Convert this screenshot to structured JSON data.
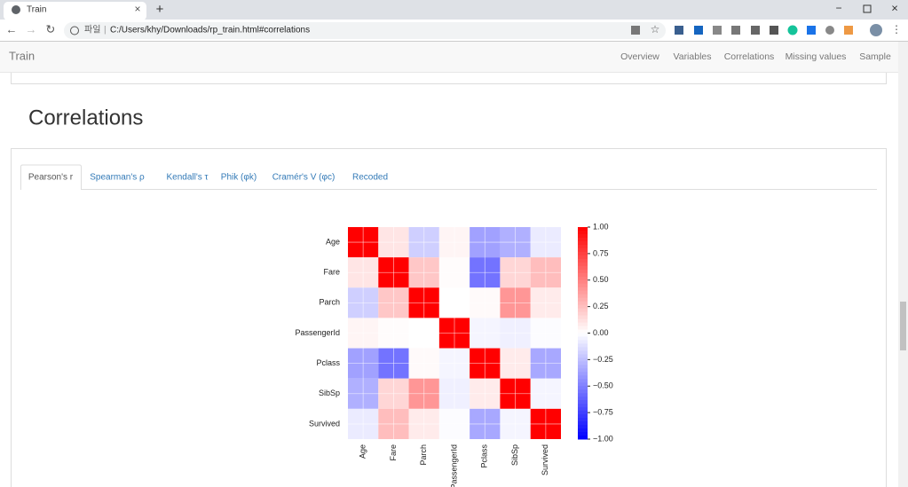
{
  "browser": {
    "tab_title": "Train",
    "url_scheme": "파일",
    "url": "C:/Users/khy/Downloads/rp_train.html#correlations"
  },
  "navbar": {
    "brand": "Train",
    "links": [
      "Overview",
      "Variables",
      "Correlations",
      "Missing values",
      "Sample"
    ]
  },
  "section": {
    "title": "Correlations",
    "tabs": [
      "Pearson's r",
      "Spearman's ρ",
      "Kendall's τ",
      "Phik (φk)",
      "Cramér's V (φc)",
      "Recoded"
    ],
    "active_tab": 0
  },
  "chart_data": {
    "type": "heatmap",
    "colormap": "bwr",
    "categories": [
      "Age",
      "Fare",
      "Parch",
      "PassengerId",
      "Pclass",
      "SibSp",
      "Survived"
    ],
    "values": [
      [
        1,
        0.1,
        -0.19,
        0.04,
        -0.37,
        -0.31,
        -0.08
      ],
      [
        0.1,
        1,
        0.22,
        0.01,
        -0.55,
        0.16,
        0.26
      ],
      [
        -0.19,
        0.22,
        1,
        0,
        0.02,
        0.41,
        0.08
      ],
      [
        0.04,
        0.01,
        0,
        1,
        -0.04,
        -0.06,
        -0.01
      ],
      [
        -0.37,
        -0.55,
        0.02,
        -0.04,
        1,
        0.08,
        -0.34
      ],
      [
        -0.31,
        0.16,
        0.41,
        -0.06,
        0.08,
        1,
        -0.04
      ],
      [
        -0.08,
        0.26,
        0.08,
        -0.01,
        -0.34,
        -0.04,
        1
      ]
    ],
    "zlim": [
      -1,
      1
    ],
    "zticks": [
      {
        "value": 1,
        "label": "1.00"
      },
      {
        "value": 0.75,
        "label": "0.75"
      },
      {
        "value": 0.5,
        "label": "0.50"
      },
      {
        "value": 0.25,
        "label": "0.25"
      },
      {
        "value": 0,
        "label": "0.00"
      },
      {
        "value": -0.25,
        "label": "−0.25"
      },
      {
        "value": -0.5,
        "label": "−0.50"
      },
      {
        "value": -0.75,
        "label": "−0.75"
      },
      {
        "value": -1,
        "label": "−1.00"
      }
    ]
  }
}
